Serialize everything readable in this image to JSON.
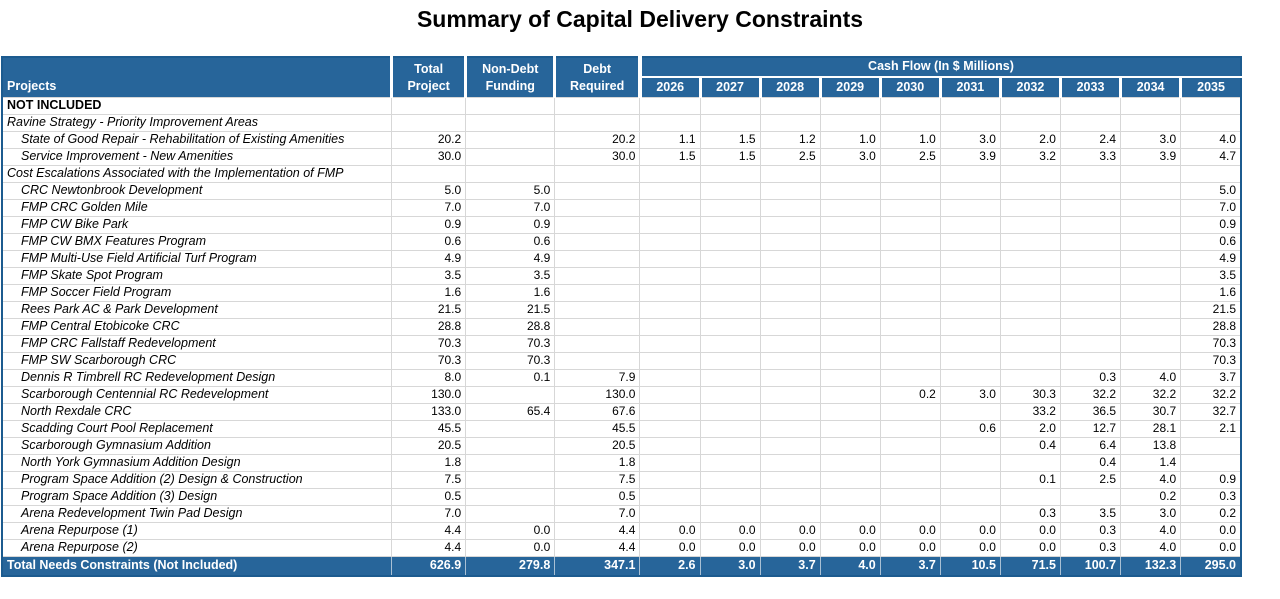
{
  "title": "Summary of Capital Delivery Constraints",
  "table": {
    "projects_header": "Projects",
    "col_headers": [
      {
        "line1": "Total",
        "line2": "Project"
      },
      {
        "line1": "Non-Debt",
        "line2": "Funding"
      },
      {
        "line1": "Debt",
        "line2": "Required"
      }
    ],
    "cashflow_header": "Cash Flow (In $ Millions)",
    "years": [
      "2026",
      "2027",
      "2028",
      "2029",
      "2030",
      "2031",
      "2032",
      "2033",
      "2034",
      "2035"
    ],
    "rows": [
      {
        "label": "NOT INCLUDED",
        "style": "section",
        "total": "",
        "nondebt": "",
        "debt": "",
        "cf": [
          "",
          "",
          "",
          "",
          "",
          "",
          "",
          "",
          "",
          ""
        ]
      },
      {
        "label": "Ravine Strategy - Priority Improvement Areas",
        "style": "group",
        "total": "",
        "nondebt": "",
        "debt": "",
        "cf": [
          "",
          "",
          "",
          "",
          "",
          "",
          "",
          "",
          "",
          ""
        ]
      },
      {
        "label": "State of Good Repair - Rehabilitation of Existing Amenities",
        "style": "item",
        "total": "20.2",
        "nondebt": "",
        "debt": "20.2",
        "cf": [
          "1.1",
          "1.5",
          "1.2",
          "1.0",
          "1.0",
          "3.0",
          "2.0",
          "2.4",
          "3.0",
          "4.0"
        ]
      },
      {
        "label": "Service Improvement - New Amenities",
        "style": "item",
        "total": "30.0",
        "nondebt": "",
        "debt": "30.0",
        "cf": [
          "1.5",
          "1.5",
          "2.5",
          "3.0",
          "2.5",
          "3.9",
          "3.2",
          "3.3",
          "3.9",
          "4.7"
        ]
      },
      {
        "label": "Cost Escalations Associated with the Implementation of FMP",
        "style": "group",
        "total": "",
        "nondebt": "",
        "debt": "",
        "cf": [
          "",
          "",
          "",
          "",
          "",
          "",
          "",
          "",
          "",
          ""
        ]
      },
      {
        "label": "CRC Newtonbrook Development",
        "style": "item",
        "total": "5.0",
        "nondebt": "5.0",
        "debt": "",
        "cf": [
          "",
          "",
          "",
          "",
          "",
          "",
          "",
          "",
          "",
          "5.0"
        ]
      },
      {
        "label": "FMP CRC Golden Mile",
        "style": "item",
        "total": "7.0",
        "nondebt": "7.0",
        "debt": "",
        "cf": [
          "",
          "",
          "",
          "",
          "",
          "",
          "",
          "",
          "",
          "7.0"
        ]
      },
      {
        "label": "FMP CW Bike Park",
        "style": "item",
        "total": "0.9",
        "nondebt": "0.9",
        "debt": "",
        "cf": [
          "",
          "",
          "",
          "",
          "",
          "",
          "",
          "",
          "",
          "0.9"
        ]
      },
      {
        "label": "FMP CW BMX Features Program",
        "style": "item",
        "total": "0.6",
        "nondebt": "0.6",
        "debt": "",
        "cf": [
          "",
          "",
          "",
          "",
          "",
          "",
          "",
          "",
          "",
          "0.6"
        ]
      },
      {
        "label": "FMP Multi-Use Field Artificial Turf Program",
        "style": "item",
        "total": "4.9",
        "nondebt": "4.9",
        "debt": "",
        "cf": [
          "",
          "",
          "",
          "",
          "",
          "",
          "",
          "",
          "",
          "4.9"
        ]
      },
      {
        "label": "FMP Skate Spot Program",
        "style": "item",
        "total": "3.5",
        "nondebt": "3.5",
        "debt": "",
        "cf": [
          "",
          "",
          "",
          "",
          "",
          "",
          "",
          "",
          "",
          "3.5"
        ]
      },
      {
        "label": "FMP Soccer Field Program",
        "style": "item",
        "total": "1.6",
        "nondebt": "1.6",
        "debt": "",
        "cf": [
          "",
          "",
          "",
          "",
          "",
          "",
          "",
          "",
          "",
          "1.6"
        ]
      },
      {
        "label": "Rees Park AC & Park Development",
        "style": "item",
        "total": "21.5",
        "nondebt": "21.5",
        "debt": "",
        "cf": [
          "",
          "",
          "",
          "",
          "",
          "",
          "",
          "",
          "",
          "21.5"
        ]
      },
      {
        "label": "FMP Central Etobicoke CRC",
        "style": "item",
        "total": "28.8",
        "nondebt": "28.8",
        "debt": "",
        "cf": [
          "",
          "",
          "",
          "",
          "",
          "",
          "",
          "",
          "",
          "28.8"
        ]
      },
      {
        "label": "FMP CRC Fallstaff Redevelopment",
        "style": "item",
        "total": "70.3",
        "nondebt": "70.3",
        "debt": "",
        "cf": [
          "",
          "",
          "",
          "",
          "",
          "",
          "",
          "",
          "",
          "70.3"
        ]
      },
      {
        "label": "FMP SW Scarborough CRC",
        "style": "item",
        "total": "70.3",
        "nondebt": "70.3",
        "debt": "",
        "cf": [
          "",
          "",
          "",
          "",
          "",
          "",
          "",
          "",
          "",
          "70.3"
        ]
      },
      {
        "label": "Dennis R Timbrell RC Redevelopment Design",
        "style": "item",
        "total": "8.0",
        "nondebt": "0.1",
        "debt": "7.9",
        "cf": [
          "",
          "",
          "",
          "",
          "",
          "",
          "",
          "0.3",
          "4.0",
          "3.7"
        ]
      },
      {
        "label": "Scarborough Centennial RC Redevelopment",
        "style": "item",
        "total": "130.0",
        "nondebt": "",
        "debt": "130.0",
        "cf": [
          "",
          "",
          "",
          "",
          "0.2",
          "3.0",
          "30.3",
          "32.2",
          "32.2",
          "32.2"
        ]
      },
      {
        "label": "North Rexdale CRC",
        "style": "item",
        "total": "133.0",
        "nondebt": "65.4",
        "debt": "67.6",
        "cf": [
          "",
          "",
          "",
          "",
          "",
          "",
          "33.2",
          "36.5",
          "30.7",
          "32.7"
        ]
      },
      {
        "label": "Scadding Court Pool Replacement",
        "style": "item",
        "total": "45.5",
        "nondebt": "",
        "debt": "45.5",
        "cf": [
          "",
          "",
          "",
          "",
          "",
          "0.6",
          "2.0",
          "12.7",
          "28.1",
          "2.1"
        ]
      },
      {
        "label": "Scarborough Gymnasium Addition",
        "style": "item",
        "total": "20.5",
        "nondebt": "",
        "debt": "20.5",
        "cf": [
          "",
          "",
          "",
          "",
          "",
          "",
          "0.4",
          "6.4",
          "13.8",
          ""
        ]
      },
      {
        "label": "North York Gymnasium Addition Design",
        "style": "item",
        "total": "1.8",
        "nondebt": "",
        "debt": "1.8",
        "cf": [
          "",
          "",
          "",
          "",
          "",
          "",
          "",
          "0.4",
          "1.4",
          ""
        ]
      },
      {
        "label": "Program Space Addition (2) Design & Construction",
        "style": "item",
        "total": "7.5",
        "nondebt": "",
        "debt": "7.5",
        "cf": [
          "",
          "",
          "",
          "",
          "",
          "",
          "0.1",
          "2.5",
          "4.0",
          "0.9"
        ]
      },
      {
        "label": "Program Space Addition (3) Design",
        "style": "item",
        "total": "0.5",
        "nondebt": "",
        "debt": "0.5",
        "cf": [
          "",
          "",
          "",
          "",
          "",
          "",
          "",
          "",
          "0.2",
          "0.3"
        ]
      },
      {
        "label": "Arena Redevelopment Twin Pad Design",
        "style": "item",
        "total": "7.0",
        "nondebt": "",
        "debt": "7.0",
        "cf": [
          "",
          "",
          "",
          "",
          "",
          "",
          "0.3",
          "3.5",
          "3.0",
          "0.2"
        ]
      },
      {
        "label": "Arena Repurpose (1)",
        "style": "item",
        "total": "4.4",
        "nondebt": "0.0",
        "debt": "4.4",
        "cf": [
          "0.0",
          "0.0",
          "0.0",
          "0.0",
          "0.0",
          "0.0",
          "0.0",
          "0.3",
          "4.0",
          "0.0"
        ]
      },
      {
        "label": "Arena Repurpose (2)",
        "style": "item",
        "total": "4.4",
        "nondebt": "0.0",
        "debt": "4.4",
        "cf": [
          "0.0",
          "0.0",
          "0.0",
          "0.0",
          "0.0",
          "0.0",
          "0.0",
          "0.3",
          "4.0",
          "0.0"
        ]
      }
    ],
    "total_row": {
      "label": "Total Needs Constraints (Not Included)",
      "total": "626.9",
      "nondebt": "279.8",
      "debt": "347.1",
      "cf": [
        "2.6",
        "3.0",
        "3.7",
        "4.0",
        "3.7",
        "10.5",
        "71.5",
        "100.7",
        "132.3",
        "295.0"
      ]
    }
  },
  "colors": {
    "header_blue": "#27659A",
    "border_blue": "#1C5B8F",
    "gridline_gray": "#D7D7D7",
    "total_divider": "#A9C0D4",
    "header_text": "#FFFFFF"
  }
}
